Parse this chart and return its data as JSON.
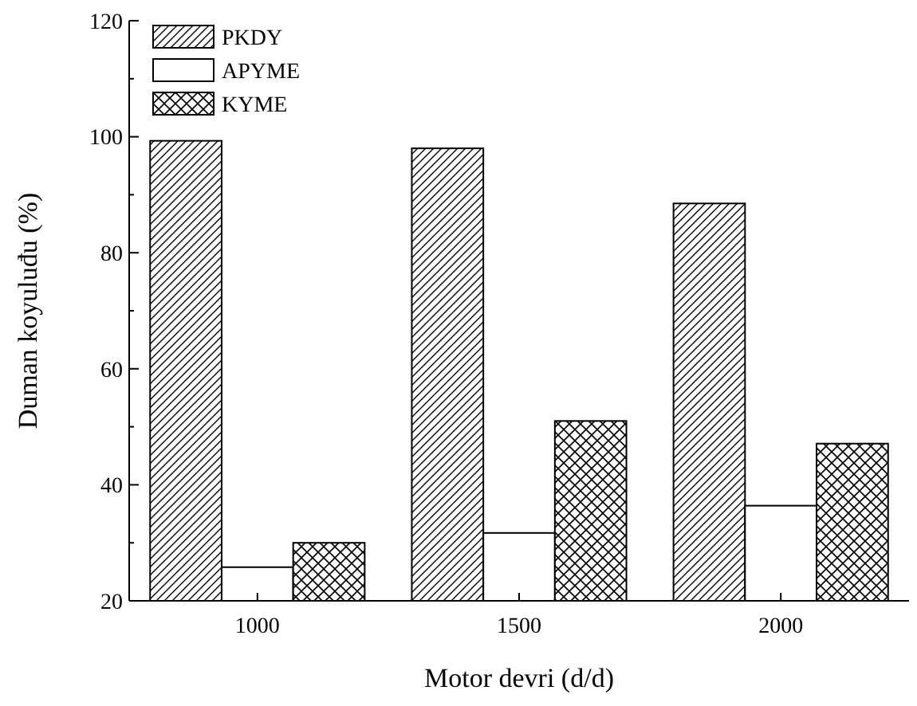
{
  "chart_data": {
    "type": "bar",
    "xlabel": "Motor devri (d/d)",
    "ylabel": "Duman koyuluđu (%)",
    "categories": [
      "1000",
      "1500",
      "2000"
    ],
    "series": [
      {
        "name": "PKDY",
        "color": "#000000",
        "values": [
          99.3,
          98.0,
          88.5
        ]
      },
      {
        "name": "APYME",
        "color": "#ffffff",
        "values": [
          25.8,
          31.7,
          36.4
        ]
      },
      {
        "name": "KYME",
        "color": "#000000",
        "values": [
          30.0,
          51.0,
          47.1
        ]
      }
    ],
    "ylim": [
      20,
      120
    ],
    "yticks": [
      20,
      {
        "value": 30,
        "label": null
      },
      40,
      {
        "value": 50,
        "label": null
      },
      60,
      {
        "value": 70,
        "label": null
      },
      80,
      {
        "value": 90,
        "label": null
      },
      100,
      {
        "value": 110,
        "label": null
      },
      120
    ],
    "legend": "top left",
    "grid": false
  }
}
